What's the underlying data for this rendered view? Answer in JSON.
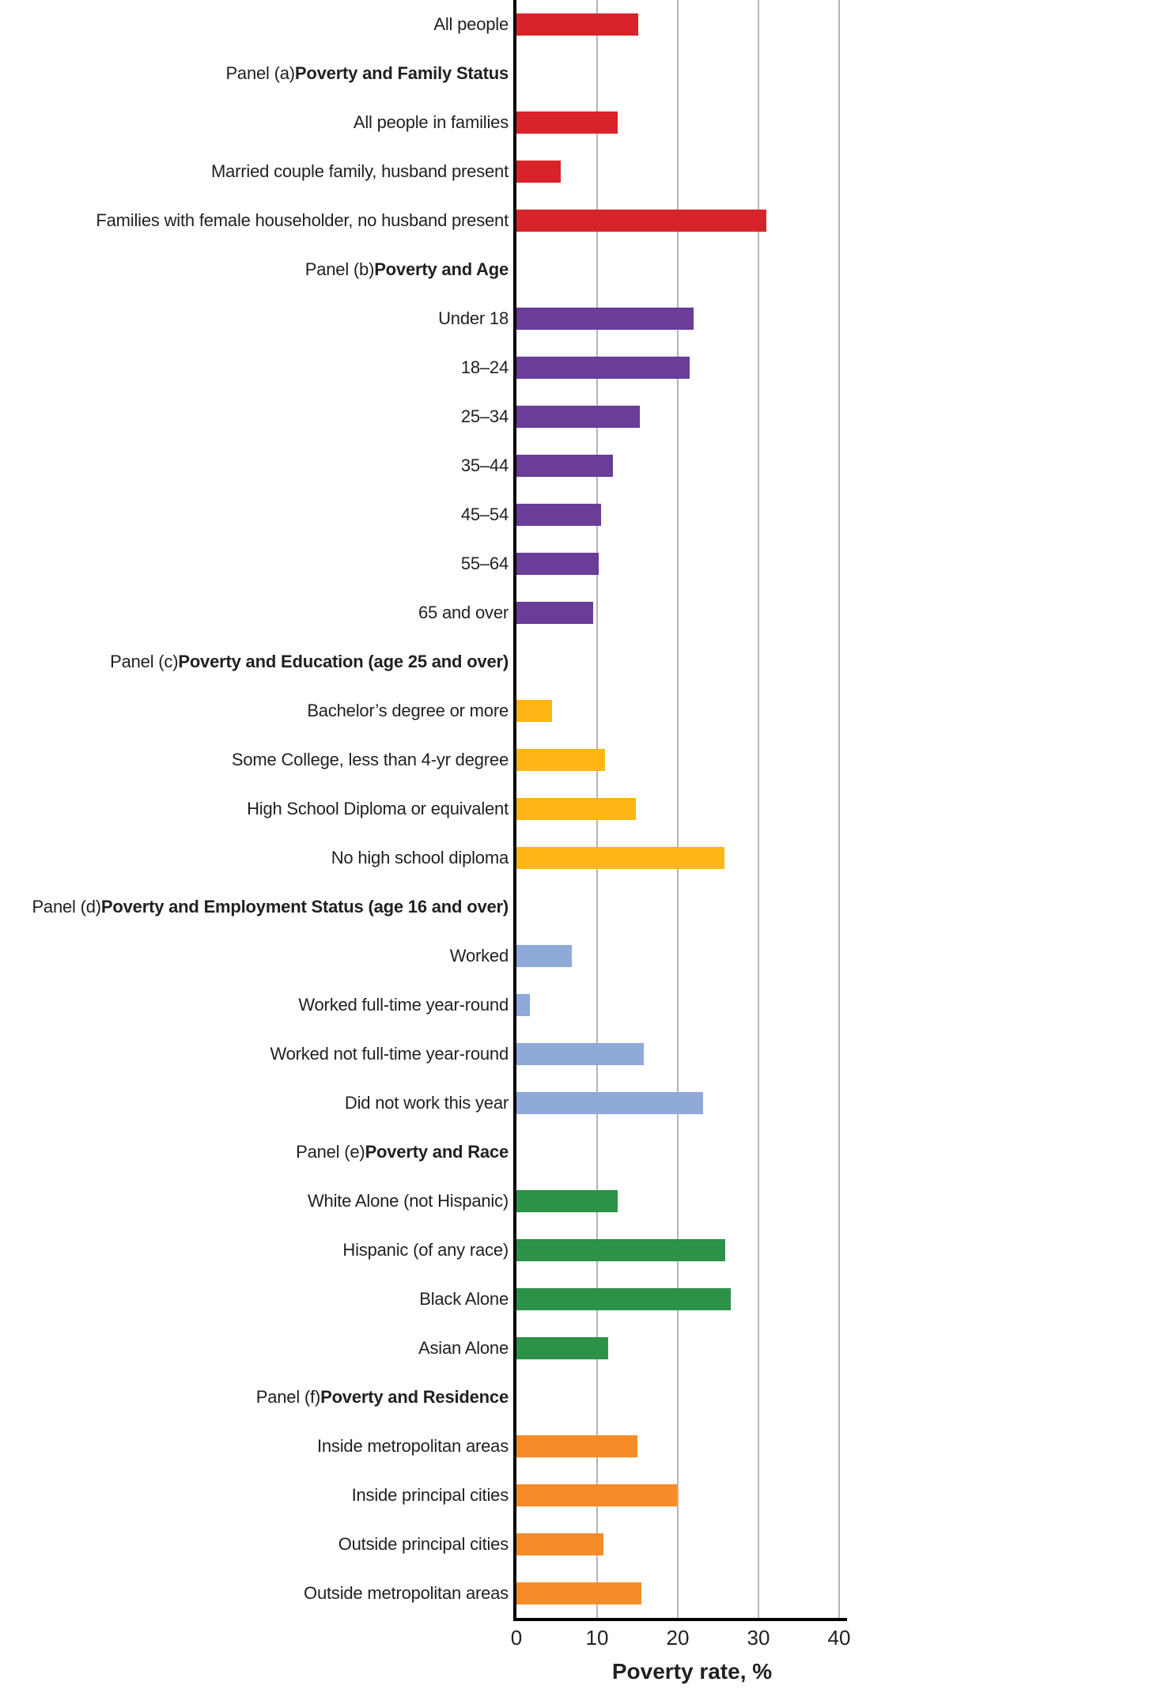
{
  "chart_data": {
    "type": "bar",
    "orientation": "horizontal",
    "title": "",
    "xlabel": "Poverty rate, %",
    "ylabel": "",
    "xlim": [
      0,
      40
    ],
    "xticks": [
      0,
      10,
      20,
      30,
      40
    ],
    "grid": "vertical",
    "legend": "none",
    "colors": {
      "red": "#d9232a",
      "purple": "#6a3d98",
      "yellow": "#fdb614",
      "blue": "#8fa9d8",
      "green": "#2e9148",
      "orange": "#f68c28"
    },
    "rows": [
      {
        "kind": "bar",
        "label": "All people",
        "value": 15.1,
        "color": "red"
      },
      {
        "kind": "header",
        "prefix": "Panel (a) ",
        "label": "Poverty and Family Status"
      },
      {
        "kind": "bar",
        "label": "All people in families",
        "value": 12.5,
        "color": "red"
      },
      {
        "kind": "bar",
        "label": "Married couple family, husband present",
        "value": 5.5,
        "color": "red"
      },
      {
        "kind": "bar",
        "label": "Families with female householder, no husband present",
        "value": 31.0,
        "color": "red"
      },
      {
        "kind": "header",
        "prefix": "Panel (b) ",
        "label": "Poverty and Age"
      },
      {
        "kind": "bar",
        "label": "Under 18",
        "value": 22.0,
        "color": "purple"
      },
      {
        "kind": "bar",
        "label": "18–24",
        "value": 21.5,
        "color": "purple"
      },
      {
        "kind": "bar",
        "label": "25–34",
        "value": 15.3,
        "color": "purple"
      },
      {
        "kind": "bar",
        "label": "35–44",
        "value": 12.0,
        "color": "purple"
      },
      {
        "kind": "bar",
        "label": "45–54",
        "value": 10.5,
        "color": "purple"
      },
      {
        "kind": "bar",
        "label": "55–64",
        "value": 10.2,
        "color": "purple"
      },
      {
        "kind": "bar",
        "label": "65 and over",
        "value": 9.5,
        "color": "purple"
      },
      {
        "kind": "header",
        "prefix": "Panel (c) ",
        "label": "Poverty and Education (age 25 and over)"
      },
      {
        "kind": "bar",
        "label": "Bachelor’s degree or more",
        "value": 4.4,
        "color": "yellow"
      },
      {
        "kind": "bar",
        "label": "Some College, less than 4-yr degree",
        "value": 11.0,
        "color": "yellow"
      },
      {
        "kind": "bar",
        "label": "High School Diploma or equivalent",
        "value": 14.8,
        "color": "yellow"
      },
      {
        "kind": "bar",
        "label": "No high school diploma",
        "value": 25.8,
        "color": "yellow"
      },
      {
        "kind": "header",
        "prefix": "Panel (d) ",
        "label": "Poverty and Employment Status (age 16 and over)"
      },
      {
        "kind": "bar",
        "label": "Worked",
        "value": 6.9,
        "color": "blue"
      },
      {
        "kind": "bar",
        "label": "Worked full-time year-round",
        "value": 1.7,
        "color": "blue"
      },
      {
        "kind": "bar",
        "label": "Worked not full-time year-round",
        "value": 15.8,
        "color": "blue"
      },
      {
        "kind": "bar",
        "label": "Did not work this year",
        "value": 23.1,
        "color": "blue"
      },
      {
        "kind": "header",
        "prefix": "Panel (e) ",
        "label": "Poverty and Race"
      },
      {
        "kind": "bar",
        "label": "White Alone (not Hispanic)",
        "value": 12.5,
        "color": "green"
      },
      {
        "kind": "bar",
        "label": "Hispanic (of any race)",
        "value": 25.9,
        "color": "green"
      },
      {
        "kind": "bar",
        "label": "Black Alone",
        "value": 26.6,
        "color": "green"
      },
      {
        "kind": "bar",
        "label": "Asian Alone",
        "value": 11.4,
        "color": "green"
      },
      {
        "kind": "header",
        "prefix": "Panel (f) ",
        "label": "Poverty and Residence"
      },
      {
        "kind": "bar",
        "label": "Inside metropolitan areas",
        "value": 15.0,
        "color": "orange"
      },
      {
        "kind": "bar",
        "label": "Inside principal cities",
        "value": 19.9,
        "color": "orange"
      },
      {
        "kind": "bar",
        "label": "Outside principal cities",
        "value": 10.8,
        "color": "orange"
      },
      {
        "kind": "bar",
        "label": "Outside metropolitan areas",
        "value": 15.5,
        "color": "orange"
      }
    ]
  }
}
